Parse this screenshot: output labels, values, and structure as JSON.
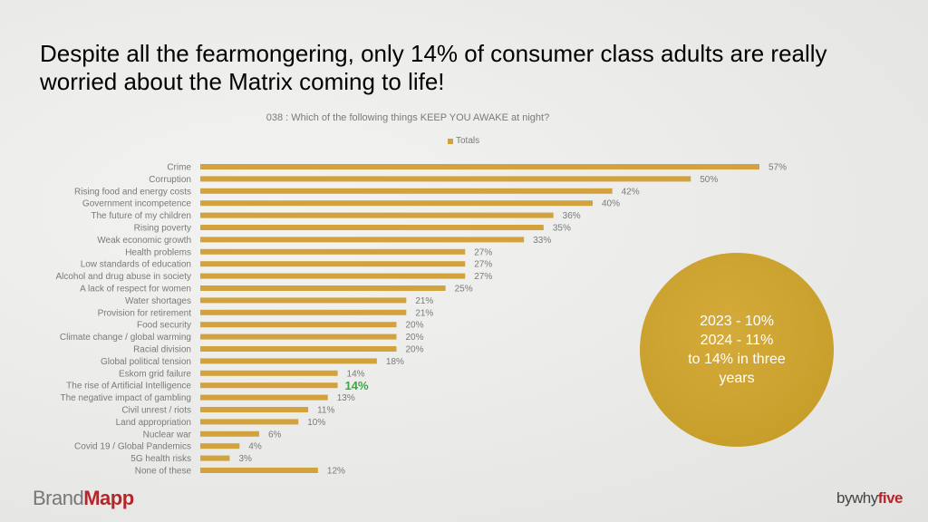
{
  "slide": {
    "title": "Despite all the fearmongering, only 14% of consumer class adults are really worried about the Matrix coming to life!",
    "callout": [
      "2023 - 10%",
      "2024 - 11%",
      "to 14% in three",
      "years"
    ],
    "logo_left": {
      "part1": "Brand",
      "part2": "Mapp"
    },
    "logo_right": {
      "part1": "bywhy",
      "part2": "five"
    }
  },
  "colors": {
    "bar": "#d2a33c",
    "highlight": "#3aa845",
    "brand_red": "#b3262b"
  },
  "chart_data": {
    "type": "bar",
    "orientation": "horizontal",
    "title": "038 : Which of the following things KEEP YOU AWAKE at night?",
    "legend": [
      "Totals"
    ],
    "legend_position": "top",
    "xlim": [
      0,
      57
    ],
    "categories": [
      "Crime",
      "Corruption",
      "Rising food and energy costs",
      "Government incompetence",
      "The future of my children",
      "Rising poverty",
      "Weak economic growth",
      "Health problems",
      "Low standards of education",
      "Alcohol and drug abuse in society",
      "A lack of respect for women",
      "Water shortages",
      "Provision for retirement",
      "Food security",
      "Climate change / global warming",
      "Racial division",
      "Global political tension",
      "Eskom grid failure",
      "The rise of Artificial Intelligence",
      "The negative impact of gambling",
      "Civil unrest / riots",
      "Land appropriation",
      "Nuclear war",
      "Covid 19 / Global Pandemics",
      "5G health risks",
      "None of these"
    ],
    "values": [
      57,
      50,
      42,
      40,
      36,
      35,
      33,
      27,
      27,
      27,
      25,
      21,
      21,
      20,
      20,
      20,
      18,
      14,
      14,
      13,
      11,
      10,
      6,
      4,
      3,
      12
    ],
    "value_labels": [
      "57%",
      "50%",
      "42%",
      "40%",
      "36%",
      "35%",
      "33%",
      "27%",
      "27%",
      "27%",
      "25%",
      "21%",
      "21%",
      "20%",
      "20%",
      "20%",
      "18%",
      "14%",
      "14%",
      "13%",
      "11%",
      "10%",
      "6%",
      "4%",
      "3%",
      "12%"
    ],
    "highlight_index": 18
  }
}
